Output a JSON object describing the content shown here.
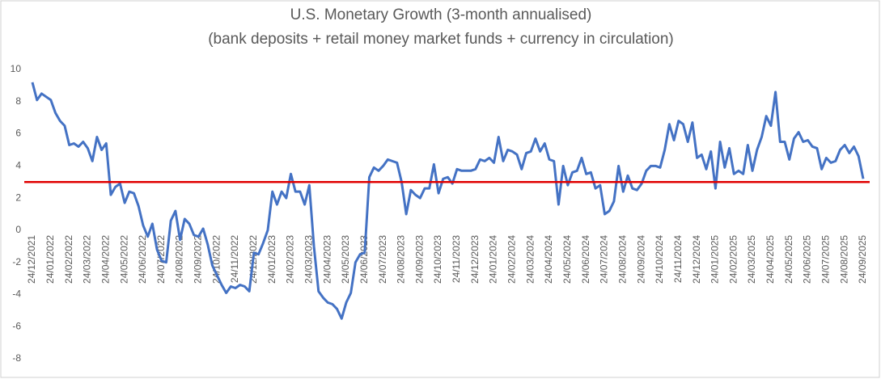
{
  "chart_data": {
    "type": "line",
    "title": "U.S. Monetary Growth (3-month annualised)",
    "subtitle": "(bank deposits + retail money market funds + currency in circulation)",
    "categories": [
      "24/12/2021",
      null,
      null,
      null,
      "24/01/2022",
      null,
      null,
      null,
      "24/02/2022",
      null,
      null,
      null,
      "24/03/2022",
      null,
      null,
      null,
      "24/04/2022",
      null,
      null,
      null,
      "24/05/2022",
      null,
      null,
      null,
      "24/06/2022",
      null,
      null,
      null,
      "24/07/2022",
      null,
      null,
      null,
      "24/08/2022",
      null,
      null,
      null,
      "24/09/2022",
      null,
      null,
      null,
      "24/10/2022",
      null,
      null,
      null,
      "24/11/2022",
      null,
      null,
      null,
      "24/12/2022",
      null,
      null,
      null,
      "24/01/2023",
      null,
      null,
      null,
      "24/02/2023",
      null,
      null,
      null,
      "24/03/2023",
      null,
      null,
      null,
      "24/04/2023",
      null,
      null,
      null,
      "24/05/2023",
      null,
      null,
      null,
      "24/06/2023",
      null,
      null,
      null,
      "24/07/2023",
      null,
      null,
      null,
      "24/08/2023",
      null,
      null,
      null,
      "24/09/2023",
      null,
      null,
      null,
      "24/10/2023",
      null,
      null,
      null,
      "24/11/2023",
      null,
      null,
      null,
      "24/12/2023",
      null,
      null,
      null,
      "24/01/2024",
      null,
      null,
      null,
      "24/02/2024",
      null,
      null,
      null,
      "24/03/2024",
      null,
      null,
      null,
      "24/04/2024",
      null,
      null,
      null,
      "24/05/2024",
      null,
      null,
      null,
      "24/06/2024",
      null,
      null,
      null,
      "24/07/2024",
      null,
      null,
      null,
      "24/08/2024",
      null,
      null,
      null,
      "24/09/2024",
      null,
      null,
      null,
      "24/10/2024",
      null,
      null,
      null,
      "24/11/2024",
      null,
      null,
      null,
      "24/12/2024",
      null,
      null,
      null,
      "24/01/2025",
      null,
      null,
      null,
      "24/02/2025",
      null,
      null,
      null,
      "24/03/2025",
      null,
      null,
      null,
      "24/04/2025",
      null,
      null,
      null,
      "24/05/2025",
      null,
      null,
      null,
      "24/06/2025",
      null,
      null,
      null,
      "24/07/2025",
      null,
      null,
      null,
      "24/08/2025",
      null,
      null,
      null,
      "24/09/2025"
    ],
    "series": [
      {
        "color": "#4472c4",
        "values": [
          9.2,
          8.1,
          8.5,
          8.3,
          8.1,
          7.3,
          6.8,
          6.5,
          5.3,
          5.4,
          5.2,
          5.5,
          5.1,
          4.3,
          5.8,
          5.0,
          5.4,
          2.2,
          2.7,
          2.9,
          1.7,
          2.4,
          2.3,
          1.5,
          0.3,
          -0.4,
          0.4,
          -1.2,
          -1.9,
          -2.0,
          0.6,
          1.2,
          -0.6,
          0.7,
          0.4,
          -0.3,
          -0.4,
          0.1,
          -0.9,
          -2.2,
          -2.8,
          -3.4,
          -3.9,
          -3.5,
          -3.6,
          -3.4,
          -3.5,
          -3.8,
          -1.4,
          -1.5,
          -0.8,
          0.0,
          2.4,
          1.6,
          2.4,
          2.0,
          3.5,
          2.4,
          2.4,
          1.6,
          2.8,
          -1.0,
          -3.8,
          -4.2,
          -4.5,
          -4.6,
          -4.9,
          -5.5,
          -4.5,
          -3.9,
          -2.0,
          -1.5,
          -1.4,
          3.3,
          3.9,
          3.7,
          4.0,
          4.4,
          4.3,
          4.2,
          3.0,
          1.0,
          2.5,
          2.2,
          2.0,
          2.6,
          2.6,
          4.1,
          2.3,
          3.2,
          3.3,
          2.9,
          3.8,
          3.7,
          3.7,
          3.7,
          3.8,
          4.4,
          4.3,
          4.5,
          4.2,
          5.8,
          4.3,
          5.0,
          4.9,
          4.7,
          3.8,
          4.8,
          4.9,
          5.7,
          4.9,
          5.4,
          4.4,
          4.3,
          1.6,
          4.0,
          2.8,
          3.6,
          3.7,
          4.5,
          3.5,
          3.6,
          2.6,
          2.8,
          1.0,
          1.2,
          1.8,
          4.0,
          2.4,
          3.4,
          2.6,
          2.5,
          2.9,
          3.7,
          4.0,
          4.0,
          3.9,
          5.0,
          6.6,
          5.6,
          6.8,
          6.6,
          5.5,
          6.7,
          4.5,
          4.7,
          3.8,
          4.9,
          2.6,
          5.5,
          3.9,
          5.1,
          3.5,
          3.7,
          3.5,
          5.3,
          3.7,
          5.0,
          5.8,
          7.1,
          6.5,
          8.6,
          5.5,
          5.5,
          4.4,
          5.7,
          6.1,
          5.5,
          5.6,
          5.2,
          5.1,
          3.8,
          4.5,
          4.2,
          4.3,
          5.0,
          5.3,
          4.8,
          5.2,
          4.6,
          3.2
        ]
      }
    ],
    "reference_line": {
      "value": 3,
      "color": "#e00000"
    },
    "ylim": [
      -8,
      10
    ],
    "yticks": [
      -8,
      -6,
      -4,
      -2,
      0,
      2,
      4,
      6,
      8,
      10
    ]
  }
}
